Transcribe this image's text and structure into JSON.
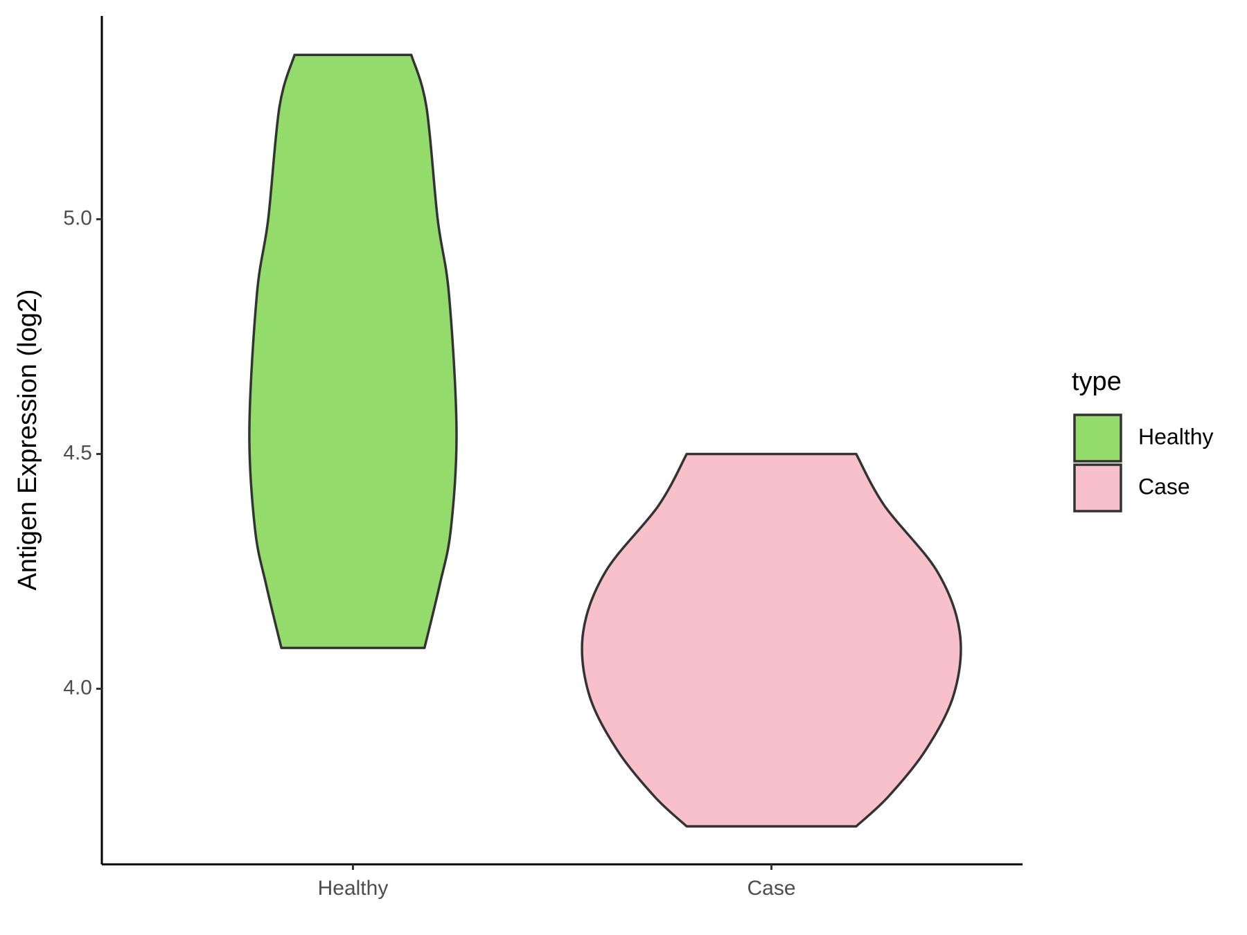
{
  "chart_data": {
    "type": "violin",
    "y_label": "Antigen Expression (log2)",
    "categories": [
      "Healthy",
      "Case"
    ],
    "legend_title": "type",
    "legend_position": "right",
    "series": [
      {
        "name": "Healthy",
        "color": "#93dc6b",
        "y": [
          5.35,
          5.24,
          5.0,
          4.84,
          4.55,
          4.34,
          4.22,
          4.087
        ],
        "density": [
          0.31,
          0.39,
          0.45,
          0.51,
          0.55,
          0.52,
          0.46,
          0.38
        ]
      },
      {
        "name": "Case",
        "color": "#f7c0cb",
        "y": [
          4.5,
          4.39,
          4.25,
          4.12,
          3.99,
          3.87,
          3.77,
          3.707
        ],
        "density": [
          0.45,
          0.6,
          0.88,
          1.0,
          0.97,
          0.82,
          0.62,
          0.45
        ]
      }
    ],
    "ylim": [
      3.626,
      5.433
    ],
    "yticks": [
      {
        "value": 4.0,
        "label": "4.0"
      },
      {
        "value": 4.5,
        "label": "4.5"
      },
      {
        "value": 5.0,
        "label": "5.0"
      }
    ],
    "grid": false
  }
}
